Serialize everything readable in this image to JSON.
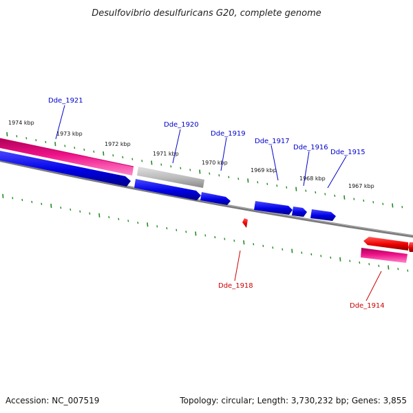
{
  "title": "Desulfovibrio desulfuricans G20, complete genome",
  "footer": {
    "accession": "Accession: NC_007519",
    "topology": "Topology: circular; Length: 3,730,232 bp; Genes: 3,855"
  },
  "colors": {
    "forward_gene": "#0000ee",
    "reverse_gene": "#ee0000",
    "pink_gene": "#ee1188",
    "gray_gene": "#bbbbbb",
    "backbone": "#777777",
    "ticks": "#228822"
  },
  "scale_labels": [
    "1974 kbp",
    "1973 kbp",
    "1972 kbp",
    "1971 kbp",
    "1970 kbp",
    "1969 kbp",
    "1968 kbp",
    "1967 kbp"
  ],
  "gene_labels": [
    {
      "text": "Dde_1921",
      "color": "#0000cc"
    },
    {
      "text": "Dde_1920",
      "color": "#0000cc"
    },
    {
      "text": "Dde_1919",
      "color": "#0000cc"
    },
    {
      "text": "Dde_1917",
      "color": "#0000cc"
    },
    {
      "text": "Dde_1916",
      "color": "#0000cc"
    },
    {
      "text": "Dde_1915",
      "color": "#0000cc"
    },
    {
      "text": "Dde_1918",
      "color": "#cc0000"
    },
    {
      "text": "Dde_1914",
      "color": "#cc0000"
    }
  ]
}
